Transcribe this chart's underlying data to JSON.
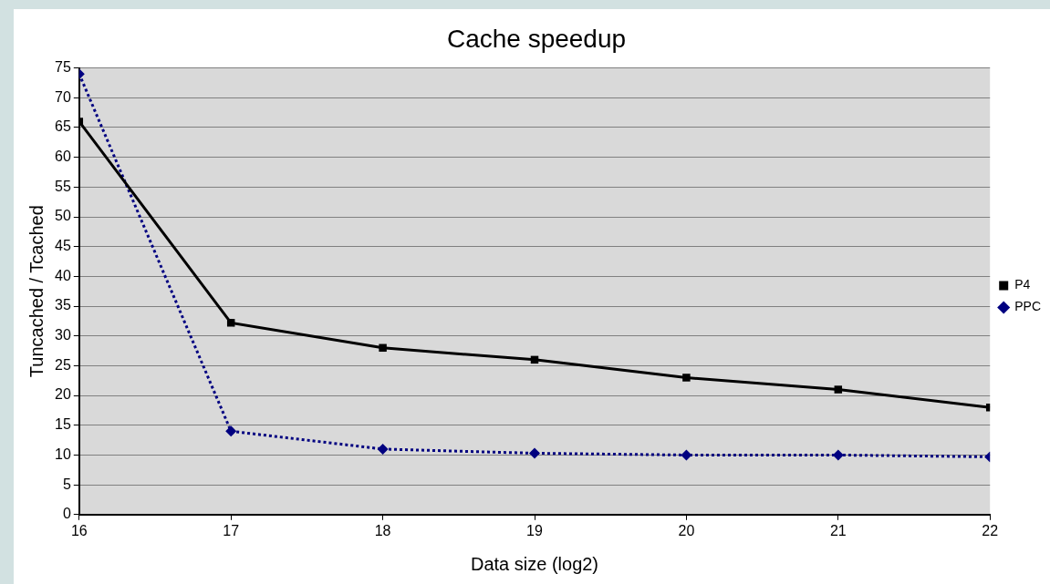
{
  "chart_data": {
    "type": "line",
    "title": "Cache speedup",
    "xlabel": "Data size (log2)",
    "ylabel": "Tuncached / Tcached",
    "x": [
      16,
      17,
      18,
      19,
      20,
      21,
      22
    ],
    "series": [
      {
        "name": "P4",
        "color": "#000000",
        "marker": "square",
        "line_style": "solid",
        "values": [
          66,
          32.2,
          28,
          26,
          23,
          21,
          18
        ]
      },
      {
        "name": "PPC",
        "color": "#000080",
        "marker": "diamond",
        "line_style": "dotted",
        "values": [
          74,
          14,
          11,
          10.3,
          10,
          10,
          9.7
        ]
      }
    ],
    "xlim": [
      16,
      22
    ],
    "xticks": [
      16,
      17,
      18,
      19,
      20,
      21,
      22
    ],
    "ylim": [
      0,
      75
    ],
    "yticks": [
      0,
      5,
      10,
      15,
      20,
      25,
      30,
      35,
      40,
      45,
      50,
      55,
      60,
      65,
      70,
      75
    ],
    "grid": "y",
    "legend": "right"
  }
}
